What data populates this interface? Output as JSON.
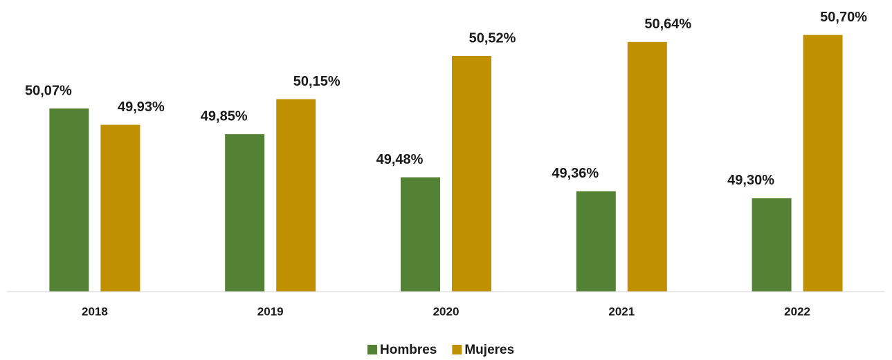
{
  "chart_data": {
    "type": "bar",
    "categories": [
      "2018",
      "2019",
      "2020",
      "2021",
      "2022"
    ],
    "series": [
      {
        "name": "Hombres",
        "color": "#548235",
        "values": [
          50.07,
          49.85,
          49.48,
          49.36,
          49.3
        ],
        "value_labels": [
          "50,07%",
          "49,85%",
          "49,48%",
          "49,36%",
          "49,30%"
        ]
      },
      {
        "name": "Mujeres",
        "color": "#bf9000",
        "values": [
          49.93,
          50.15,
          50.52,
          50.64,
          50.7
        ],
        "value_labels": [
          "49,93%",
          "50,15%",
          "50,52%",
          "50,64%",
          "50,70%"
        ]
      }
    ],
    "ylim": [
      48.5,
      51.0
    ],
    "legend": "bottom"
  }
}
